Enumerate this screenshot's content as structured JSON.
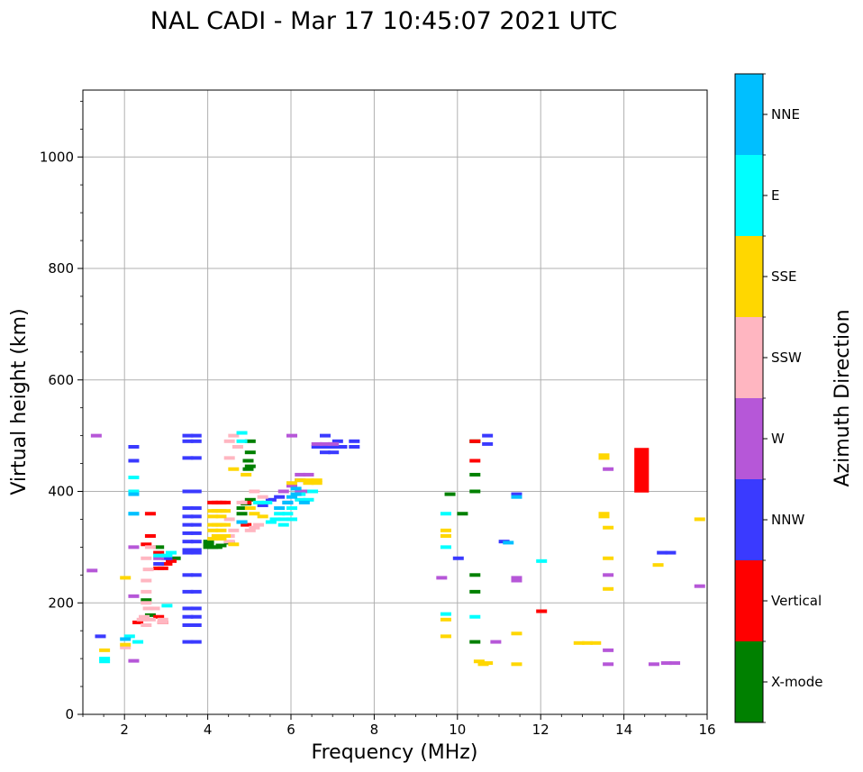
{
  "chart_data": {
    "type": "scatter",
    "title": "NAL CADI - Mar 17 10:45:07 2021 UTC",
    "xlabel": "Frequency (MHz)",
    "ylabel": "Virtual height (km)",
    "xlim": [
      1,
      16
    ],
    "ylim": [
      0,
      1120
    ],
    "xticks": [
      2,
      4,
      6,
      8,
      10,
      12,
      14,
      16
    ],
    "yticks": [
      0,
      200,
      400,
      600,
      800,
      1000
    ],
    "grid": true,
    "colorbar": {
      "label": "Azimuth Direction",
      "categories": [
        {
          "name": "X-mode",
          "color": "#008000"
        },
        {
          "name": "Vertical",
          "color": "#ff0000"
        },
        {
          "name": "NNW",
          "color": "#3a3aff"
        },
        {
          "name": "W",
          "color": "#b657d8"
        },
        {
          "name": "SSW",
          "color": "#ffb6c1"
        },
        {
          "name": "SSE",
          "color": "#ffd700"
        },
        {
          "name": "E",
          "color": "#00ffff"
        },
        {
          "name": "NNE",
          "color": "#00bfff"
        }
      ]
    },
    "series": [
      {
        "name": "X-mode",
        "points": [
          [
            4.0,
            300
          ],
          [
            4.0,
            305
          ],
          [
            4.1,
            300
          ],
          [
            4.2,
            300
          ],
          [
            4.3,
            303
          ],
          [
            4.0,
            310
          ],
          [
            4.5,
            308
          ],
          [
            4.8,
            345
          ],
          [
            4.8,
            360
          ],
          [
            4.8,
            370
          ],
          [
            4.9,
            378
          ],
          [
            5.0,
            385
          ],
          [
            4.95,
            440
          ],
          [
            5.0,
            445
          ],
          [
            4.95,
            455
          ],
          [
            5.0,
            470
          ],
          [
            5.0,
            490
          ],
          [
            2.5,
            205
          ],
          [
            2.6,
            178
          ],
          [
            3.2,
            280
          ],
          [
            9.8,
            395
          ],
          [
            10.1,
            360
          ],
          [
            10.4,
            490
          ],
          [
            10.4,
            430
          ],
          [
            10.4,
            400
          ],
          [
            10.4,
            250
          ],
          [
            10.4,
            220
          ],
          [
            10.4,
            130
          ],
          [
            2.8,
            300
          ]
        ]
      },
      {
        "name": "Vertical",
        "points": [
          [
            4.1,
            380
          ],
          [
            4.2,
            380
          ],
          [
            4.3,
            380
          ],
          [
            4.4,
            380
          ],
          [
            2.8,
            262
          ],
          [
            2.9,
            262
          ],
          [
            3.0,
            270
          ],
          [
            3.1,
            275
          ],
          [
            2.6,
            360
          ],
          [
            2.6,
            320
          ],
          [
            2.5,
            305
          ],
          [
            2.8,
            290
          ],
          [
            2.9,
            165
          ],
          [
            2.8,
            175
          ],
          [
            2.3,
            165
          ],
          [
            10.4,
            455
          ],
          [
            10.4,
            490
          ],
          [
            12.0,
            185
          ],
          [
            4.9,
            380
          ],
          [
            4.9,
            340
          ]
        ]
      },
      {
        "name": "NNW",
        "points": [
          [
            3.5,
            500
          ],
          [
            3.7,
            500
          ],
          [
            3.5,
            490
          ],
          [
            3.7,
            490
          ],
          [
            3.5,
            460
          ],
          [
            3.7,
            460
          ],
          [
            3.5,
            400
          ],
          [
            3.7,
            400
          ],
          [
            3.5,
            370
          ],
          [
            3.7,
            370
          ],
          [
            3.5,
            355
          ],
          [
            3.7,
            355
          ],
          [
            3.5,
            340
          ],
          [
            3.7,
            340
          ],
          [
            3.5,
            325
          ],
          [
            3.7,
            325
          ],
          [
            3.5,
            310
          ],
          [
            3.7,
            310
          ],
          [
            3.5,
            295
          ],
          [
            3.7,
            295
          ],
          [
            3.5,
            290
          ],
          [
            3.7,
            290
          ],
          [
            3.5,
            250
          ],
          [
            3.7,
            250
          ],
          [
            3.5,
            220
          ],
          [
            3.7,
            220
          ],
          [
            3.5,
            190
          ],
          [
            3.7,
            190
          ],
          [
            3.5,
            175
          ],
          [
            3.7,
            175
          ],
          [
            3.5,
            160
          ],
          [
            3.7,
            160
          ],
          [
            3.5,
            130
          ],
          [
            3.7,
            130
          ],
          [
            2.2,
            480
          ],
          [
            2.2,
            455
          ],
          [
            6.6,
            480
          ],
          [
            6.8,
            480
          ],
          [
            7.0,
            480
          ],
          [
            7.2,
            480
          ],
          [
            6.8,
            470
          ],
          [
            7.0,
            470
          ],
          [
            6.8,
            500
          ],
          [
            7.5,
            490
          ],
          [
            7.5,
            480
          ],
          [
            7.1,
            490
          ],
          [
            5.5,
            385
          ],
          [
            5.7,
            390
          ],
          [
            5.9,
            380
          ],
          [
            5.3,
            375
          ],
          [
            6.2,
            420
          ],
          [
            10.7,
            500
          ],
          [
            10.7,
            485
          ],
          [
            10.0,
            280
          ],
          [
            11.1,
            310
          ],
          [
            11.4,
            395
          ],
          [
            14.9,
            290
          ],
          [
            15.1,
            290
          ],
          [
            1.4,
            140
          ],
          [
            2.8,
            270
          ],
          [
            3.0,
            280
          ]
        ]
      },
      {
        "name": "W",
        "points": [
          [
            6.6,
            485
          ],
          [
            6.8,
            485
          ],
          [
            7.0,
            485
          ],
          [
            6.2,
            430
          ],
          [
            6.4,
            430
          ],
          [
            6.0,
            410
          ],
          [
            6.2,
            400
          ],
          [
            6.4,
            400
          ],
          [
            5.8,
            400
          ],
          [
            1.3,
            500
          ],
          [
            1.2,
            258
          ],
          [
            2.2,
            300
          ],
          [
            2.2,
            212
          ],
          [
            2.2,
            96
          ],
          [
            9.6,
            245
          ],
          [
            10.9,
            130
          ],
          [
            11.4,
            245
          ],
          [
            11.4,
            240
          ],
          [
            13.6,
            115
          ],
          [
            13.6,
            90
          ],
          [
            13.6,
            250
          ],
          [
            13.6,
            440
          ],
          [
            14.7,
            90
          ],
          [
            15.0,
            92
          ],
          [
            15.2,
            92
          ],
          [
            15.8,
            230
          ],
          [
            6.0,
            500
          ],
          [
            2.8,
            280
          ]
        ]
      },
      {
        "name": "SSW",
        "points": [
          [
            2.5,
            200
          ],
          [
            2.55,
            190
          ],
          [
            2.45,
            175
          ],
          [
            2.4,
            170
          ],
          [
            2.5,
            160
          ],
          [
            2.5,
            220
          ],
          [
            2.5,
            240
          ],
          [
            2.55,
            260
          ],
          [
            2.5,
            280
          ],
          [
            2.6,
            300
          ],
          [
            2.9,
            170
          ],
          [
            2.9,
            165
          ],
          [
            2.7,
            190
          ],
          [
            2.6,
            170
          ],
          [
            4.5,
            310
          ],
          [
            4.5,
            320
          ],
          [
            4.5,
            350
          ],
          [
            4.6,
            330
          ],
          [
            4.5,
            460
          ],
          [
            4.5,
            490
          ],
          [
            4.6,
            500
          ],
          [
            4.7,
            480
          ],
          [
            5.0,
            330
          ],
          [
            5.1,
            335
          ],
          [
            5.2,
            340
          ],
          [
            5.1,
            400
          ],
          [
            5.3,
            390
          ],
          [
            4.8,
            380
          ],
          [
            2.0,
            120
          ]
        ]
      },
      {
        "name": "SSE",
        "points": [
          [
            4.1,
            365
          ],
          [
            4.2,
            365
          ],
          [
            4.3,
            365
          ],
          [
            4.4,
            365
          ],
          [
            4.1,
            355
          ],
          [
            4.3,
            355
          ],
          [
            4.1,
            340
          ],
          [
            4.2,
            340
          ],
          [
            4.3,
            340
          ],
          [
            4.4,
            340
          ],
          [
            4.1,
            330
          ],
          [
            4.3,
            330
          ],
          [
            4.2,
            320
          ],
          [
            4.1,
            315
          ],
          [
            4.3,
            315
          ],
          [
            4.4,
            320
          ],
          [
            4.6,
            305
          ],
          [
            6.2,
            420
          ],
          [
            6.4,
            420
          ],
          [
            6.6,
            420
          ],
          [
            6.4,
            415
          ],
          [
            6.6,
            415
          ],
          [
            6.0,
            415
          ],
          [
            5.0,
            370
          ],
          [
            5.2,
            380
          ],
          [
            5.1,
            360
          ],
          [
            5.3,
            355
          ],
          [
            4.9,
            430
          ],
          [
            4.6,
            440
          ],
          [
            9.7,
            330
          ],
          [
            9.7,
            320
          ],
          [
            9.7,
            170
          ],
          [
            9.7,
            140
          ],
          [
            10.5,
            95
          ],
          [
            10.6,
            90
          ],
          [
            10.7,
            92
          ],
          [
            11.4,
            90
          ],
          [
            11.4,
            145
          ],
          [
            12.9,
            128
          ],
          [
            13.1,
            128
          ],
          [
            13.3,
            128
          ],
          [
            13.5,
            465
          ],
          [
            13.5,
            460
          ],
          [
            13.5,
            360
          ],
          [
            13.5,
            355
          ],
          [
            13.6,
            335
          ],
          [
            13.6,
            280
          ],
          [
            13.6,
            225
          ],
          [
            14.8,
            268
          ],
          [
            15.8,
            350
          ],
          [
            2.0,
            125
          ],
          [
            2.0,
            245
          ],
          [
            1.5,
            115
          ]
        ]
      },
      {
        "name": "E",
        "points": [
          [
            5.6,
            350
          ],
          [
            5.8,
            350
          ],
          [
            6.0,
            350
          ],
          [
            5.7,
            360
          ],
          [
            5.9,
            360
          ],
          [
            6.0,
            370
          ],
          [
            5.5,
            345
          ],
          [
            5.8,
            340
          ],
          [
            6.2,
            385
          ],
          [
            6.4,
            385
          ],
          [
            6.5,
            400
          ],
          [
            6.2,
            395
          ],
          [
            4.8,
            505
          ],
          [
            4.8,
            490
          ],
          [
            5.2,
            380
          ],
          [
            5.4,
            380
          ],
          [
            3.0,
            195
          ],
          [
            3.1,
            290
          ],
          [
            2.2,
            360
          ],
          [
            2.2,
            400
          ],
          [
            2.2,
            425
          ],
          [
            1.5,
            100
          ],
          [
            1.5,
            95
          ],
          [
            2.1,
            140
          ],
          [
            2.3,
            130
          ],
          [
            9.7,
            360
          ],
          [
            9.7,
            300
          ],
          [
            9.7,
            180
          ],
          [
            10.4,
            175
          ],
          [
            12.0,
            275
          ],
          [
            2.8,
            285
          ],
          [
            3.0,
            285
          ]
        ]
      },
      {
        "name": "NNE",
        "points": [
          [
            6.0,
            390
          ],
          [
            6.1,
            395
          ],
          [
            5.9,
            380
          ],
          [
            6.1,
            405
          ],
          [
            6.3,
            380
          ],
          [
            5.7,
            370
          ],
          [
            2.2,
            395
          ],
          [
            2.2,
            360
          ],
          [
            11.2,
            308
          ],
          [
            11.4,
            390
          ],
          [
            2.0,
            135
          ],
          [
            4.8,
            345
          ]
        ]
      }
    ],
    "rects": [
      {
        "name": "Vertical",
        "x0": 14.25,
        "x1": 14.6,
        "y0": 398,
        "y1": 478
      }
    ]
  }
}
